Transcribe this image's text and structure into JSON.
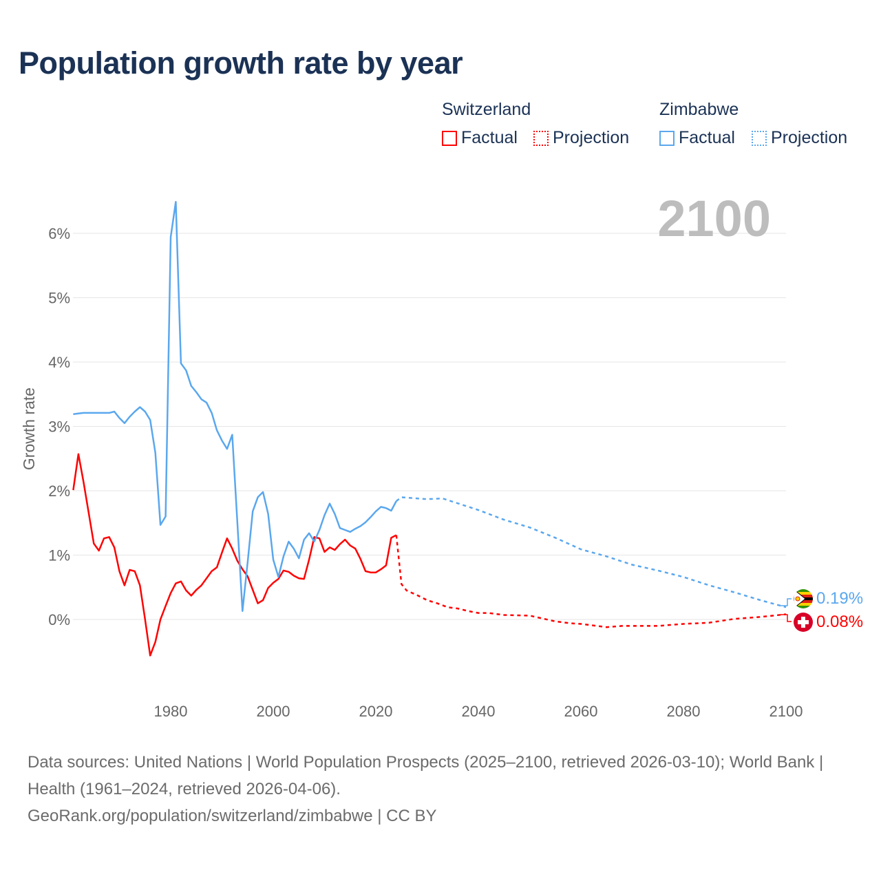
{
  "title": "Population growth rate by year",
  "legend": {
    "groups": [
      {
        "country": "Switzerland",
        "color": "#ff0000",
        "factual": "Factual",
        "projection": "Projection"
      },
      {
        "country": "Zimbabwe",
        "color": "#5aa7ee",
        "factual": "Factual",
        "projection": "Projection"
      }
    ]
  },
  "chart_data": {
    "type": "line",
    "title": "Population growth rate by year",
    "xlabel": "",
    "ylabel": "Growth rate",
    "year_label": "2100",
    "xlim": [
      1961,
      2100
    ],
    "ylim": [
      -0.9,
      6.6
    ],
    "x_ticks": [
      "1980",
      "2000",
      "2020",
      "2040",
      "2060",
      "2080",
      "2100"
    ],
    "y_ticks": [
      "0%",
      "1%",
      "2%",
      "3%",
      "4%",
      "5%",
      "6%"
    ],
    "grid": true,
    "series": [
      {
        "name": "Switzerland",
        "color": "#ff0000",
        "end_label": "0.08%",
        "factual": {
          "start_year": 1961,
          "values": [
            2.01,
            2.57,
            2.14,
            1.66,
            1.18,
            1.07,
            1.26,
            1.28,
            1.12,
            0.75,
            0.53,
            0.77,
            0.75,
            0.53,
            0.0,
            -0.56,
            -0.35,
            0.0,
            0.21,
            0.41,
            0.56,
            0.59,
            0.45,
            0.37,
            0.46,
            0.53,
            0.64,
            0.75,
            0.81,
            1.04,
            1.26,
            1.1,
            0.91,
            0.78,
            0.67,
            0.46,
            0.25,
            0.3,
            0.49,
            0.57,
            0.63,
            0.76,
            0.74,
            0.68,
            0.64,
            0.63,
            0.93,
            1.28,
            1.26,
            1.05,
            1.12,
            1.08,
            1.17,
            1.24,
            1.15,
            1.1,
            0.94,
            0.75,
            0.73,
            0.73,
            0.78,
            0.84,
            1.27,
            1.31
          ]
        },
        "projection": {
          "x": [
            2024,
            2025,
            2026,
            2028,
            2030,
            2032,
            2034,
            2036,
            2038,
            2040,
            2042,
            2045,
            2050,
            2055,
            2058,
            2060,
            2065,
            2068,
            2070,
            2075,
            2080,
            2085,
            2090,
            2095,
            2100
          ],
          "y": [
            1.31,
            0.55,
            0.45,
            0.38,
            0.3,
            0.25,
            0.19,
            0.17,
            0.13,
            0.1,
            0.1,
            0.07,
            0.06,
            -0.03,
            -0.06,
            -0.07,
            -0.12,
            -0.1,
            -0.1,
            -0.1,
            -0.07,
            -0.05,
            0.01,
            0.04,
            0.08
          ]
        }
      },
      {
        "name": "Zimbabwe",
        "color": "#5aa7ee",
        "end_label": "0.19%",
        "factual": {
          "start_year": 1961,
          "values": [
            3.19,
            3.2,
            3.21,
            3.21,
            3.21,
            3.21,
            3.21,
            3.21,
            3.23,
            3.13,
            3.05,
            3.15,
            3.23,
            3.3,
            3.23,
            3.1,
            2.59,
            1.47,
            1.6,
            5.94,
            6.49,
            3.98,
            3.87,
            3.63,
            3.53,
            3.42,
            3.37,
            3.21,
            2.94,
            2.78,
            2.65,
            2.87,
            1.5,
            0.13,
            0.89,
            1.68,
            1.9,
            1.98,
            1.64,
            0.93,
            0.66,
            0.98,
            1.21,
            1.1,
            0.95,
            1.24,
            1.34,
            1.21,
            1.39,
            1.62,
            1.8,
            1.64,
            1.42,
            1.39,
            1.36,
            1.41,
            1.45,
            1.51,
            1.59,
            1.68,
            1.75,
            1.73,
            1.69,
            1.84
          ]
        },
        "projection": {
          "x": [
            2024,
            2025,
            2030,
            2033,
            2035,
            2040,
            2045,
            2050,
            2055,
            2060,
            2065,
            2070,
            2075,
            2080,
            2085,
            2090,
            2095,
            2100
          ],
          "y": [
            1.84,
            1.9,
            1.87,
            1.88,
            1.83,
            1.7,
            1.55,
            1.43,
            1.27,
            1.09,
            0.98,
            0.85,
            0.76,
            0.66,
            0.53,
            0.42,
            0.3,
            0.19
          ]
        }
      }
    ]
  },
  "footer": {
    "sources": "Data sources: United Nations | World Population Prospects (2025–2100, retrieved 2026-03-10); World Bank | Health (1961–2024, retrieved 2026-04-06).",
    "credit": "GeoRank.org/population/switzerland/zimbabwe | CC BY"
  }
}
